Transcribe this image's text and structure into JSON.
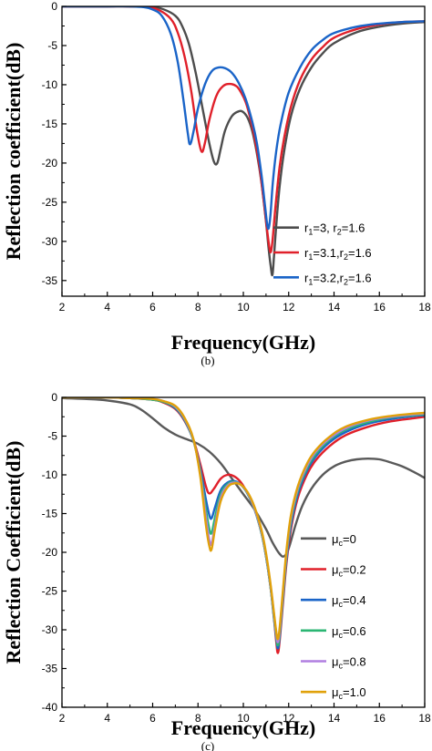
{
  "chart_data": [
    {
      "type": "line",
      "panel_label": "(b)",
      "xlabel": "Frequency(GHz)",
      "ylabel": "Reflection coefficient(dB)",
      "xlim": [
        2,
        18
      ],
      "ylim": [
        -37,
        0
      ],
      "xticks": [
        2,
        4,
        6,
        8,
        10,
        12,
        14,
        16,
        18
      ],
      "yticks": [
        0,
        -5,
        -10,
        -15,
        -20,
        -25,
        -30,
        -35
      ],
      "grid": false,
      "legend_position": "bottom-right",
      "series": [
        {
          "name": "r1=3, r2=1.6",
          "legend_parts": [
            "r",
            "1",
            "=3,    r",
            "2",
            "=1.6"
          ],
          "color": "#4d4d4d",
          "x": [
            2,
            4,
            5,
            6,
            6.5,
            7,
            7.3,
            7.6,
            7.9,
            8.2,
            8.5,
            8.7,
            8.85,
            9.0,
            9.2,
            9.5,
            9.8,
            10.0,
            10.2,
            10.4,
            10.6,
            10.8,
            11.0,
            11.1,
            11.2,
            11.28,
            11.35,
            11.45,
            11.6,
            11.8,
            12.1,
            12.5,
            13,
            13.5,
            14,
            15,
            16,
            17,
            18
          ],
          "y": [
            0,
            0,
            0,
            -0.1,
            -0.4,
            -1.2,
            -2.5,
            -4.8,
            -8.5,
            -13,
            -17.5,
            -19.8,
            -20,
            -18.2,
            -15.8,
            -14,
            -13.4,
            -13.5,
            -14.3,
            -16,
            -18.8,
            -22.5,
            -27.5,
            -30.5,
            -33,
            -34.3,
            -32,
            -28,
            -23,
            -18.5,
            -14,
            -10.5,
            -7.8,
            -6.0,
            -4.7,
            -3.3,
            -2.6,
            -2.2,
            -2.0
          ]
        },
        {
          "name": "r1=3.1, r2=1.6",
          "legend_parts": [
            "r",
            "1",
            "=3.1,r",
            "2",
            "=1.6"
          ],
          "color": "#e0202a",
          "x": [
            2,
            4,
            5,
            5.8,
            6.3,
            6.8,
            7.1,
            7.4,
            7.7,
            7.95,
            8.15,
            8.3,
            8.5,
            8.8,
            9.1,
            9.4,
            9.7,
            9.9,
            10.1,
            10.3,
            10.5,
            10.7,
            10.9,
            11.05,
            11.15,
            11.22,
            11.3,
            11.42,
            11.6,
            11.8,
            12.1,
            12.5,
            13,
            13.5,
            14,
            15,
            16,
            17,
            18
          ],
          "y": [
            0,
            0,
            0,
            -0.1,
            -0.5,
            -1.6,
            -3.3,
            -6.3,
            -10.8,
            -15.8,
            -18.5,
            -17.5,
            -14.5,
            -11.5,
            -10.2,
            -9.9,
            -10.2,
            -11,
            -12.2,
            -14.2,
            -16.8,
            -20.2,
            -24.8,
            -28.6,
            -30.8,
            -31.3,
            -29.5,
            -25.5,
            -20.5,
            -16.8,
            -12.8,
            -9.4,
            -6.8,
            -5.2,
            -4.0,
            -2.9,
            -2.3,
            -2.0,
            -1.9
          ]
        },
        {
          "name": "r1=3.2, r2=1.6",
          "legend_parts": [
            "r",
            "1",
            "=3.2,r",
            "2",
            "=1.6"
          ],
          "color": "#1a64c8",
          "x": [
            2,
            4,
            5,
            5.6,
            6.0,
            6.4,
            6.8,
            7.1,
            7.35,
            7.55,
            7.65,
            7.8,
            8.0,
            8.3,
            8.6,
            8.9,
            9.2,
            9.5,
            9.8,
            10.1,
            10.4,
            10.6,
            10.8,
            10.95,
            11.05,
            11.12,
            11.2,
            11.3,
            11.45,
            11.65,
            12.0,
            12.5,
            13,
            13.5,
            14,
            15,
            16,
            17,
            18
          ],
          "y": [
            0,
            0,
            0,
            -0.1,
            -0.4,
            -1.2,
            -3.5,
            -7,
            -11.8,
            -16.2,
            -17.6,
            -16,
            -13,
            -10,
            -8.3,
            -7.8,
            -7.9,
            -8.5,
            -9.8,
            -11.8,
            -14.8,
            -17.5,
            -21.5,
            -25.3,
            -27.8,
            -28.3,
            -26.5,
            -22.5,
            -18.5,
            -15,
            -11,
            -7.8,
            -5.6,
            -4.3,
            -3.4,
            -2.6,
            -2.2,
            -2.0,
            -1.9
          ]
        }
      ]
    },
    {
      "type": "line",
      "panel_label": "(c)",
      "xlabel": "Frequency(GHz)",
      "ylabel": "Reflection Coefficient(dB)",
      "xlim": [
        2,
        18
      ],
      "ylim": [
        -40,
        0
      ],
      "xticks": [
        2,
        4,
        6,
        8,
        10,
        12,
        14,
        16,
        18
      ],
      "yticks": [
        0,
        -5,
        -10,
        -15,
        -20,
        -25,
        -30,
        -35,
        -40
      ],
      "grid": false,
      "legend_position": "bottom-right",
      "series": [
        {
          "name": "μc=0",
          "legend_parts": [
            "μ",
            "c",
            "=0"
          ],
          "color": "#595959",
          "x": [
            2,
            3,
            4,
            5,
            5.5,
            6,
            6.5,
            7,
            7.5,
            8,
            8.5,
            9,
            9.5,
            10,
            10.5,
            11,
            11.3,
            11.6,
            11.8,
            12.0,
            12.3,
            12.6,
            13,
            13.5,
            14,
            14.5,
            15,
            15.5,
            16,
            16.5,
            17,
            17.5,
            18
          ],
          "y": [
            -0.1,
            -0.2,
            -0.4,
            -0.9,
            -1.6,
            -2.7,
            -3.9,
            -4.8,
            -5.4,
            -6.0,
            -7.0,
            -8.5,
            -10.5,
            -12.5,
            -14.5,
            -17,
            -18.8,
            -20.2,
            -20.5,
            -19.5,
            -16.5,
            -14,
            -11.8,
            -10,
            -8.9,
            -8.3,
            -8.0,
            -7.9,
            -8.0,
            -8.4,
            -8.9,
            -9.6,
            -10.4
          ]
        },
        {
          "name": "μc=0.2",
          "legend_parts": [
            "μ",
            "c",
            "=0.2"
          ],
          "color": "#e0202a",
          "x": [
            2,
            4,
            5,
            6,
            6.5,
            7,
            7.4,
            7.8,
            8.1,
            8.35,
            8.5,
            8.7,
            9.0,
            9.3,
            9.6,
            9.9,
            10.2,
            10.5,
            10.8,
            11.0,
            11.2,
            11.35,
            11.45,
            11.52,
            11.6,
            11.75,
            11.9,
            12.1,
            12.4,
            12.8,
            13.2,
            13.8,
            14.5,
            15.5,
            16.5,
            17.5,
            18
          ],
          "y": [
            0,
            0,
            -0.1,
            -0.3,
            -0.7,
            -1.5,
            -3,
            -5.5,
            -8.6,
            -11.5,
            -12.4,
            -11.8,
            -10.5,
            -10.0,
            -10.2,
            -11,
            -12.5,
            -14.5,
            -17.5,
            -20.5,
            -24.5,
            -28.5,
            -31.5,
            -33.0,
            -31.5,
            -26.5,
            -21.5,
            -17,
            -13,
            -10,
            -8.1,
            -6.3,
            -4.9,
            -3.8,
            -3.1,
            -2.7,
            -2.5
          ]
        },
        {
          "name": "μc=0.4",
          "legend_parts": [
            "μ",
            "c",
            "=0.4"
          ],
          "color": "#1a64c8",
          "x": [
            2,
            4,
            5,
            6,
            6.5,
            7,
            7.4,
            7.8,
            8.1,
            8.35,
            8.5,
            8.6,
            8.75,
            9.0,
            9.3,
            9.6,
            9.9,
            10.2,
            10.5,
            10.8,
            11.0,
            11.2,
            11.35,
            11.45,
            11.52,
            11.6,
            11.75,
            11.9,
            12.1,
            12.4,
            12.8,
            13.2,
            13.8,
            14.5,
            15.5,
            16.5,
            17.5,
            18
          ],
          "y": [
            0,
            0,
            -0.1,
            -0.3,
            -0.6,
            -1.4,
            -2.9,
            -5.6,
            -9.2,
            -13.2,
            -15.2,
            -15.6,
            -14.2,
            -12,
            -11,
            -10.8,
            -11.3,
            -12.5,
            -14.5,
            -17.5,
            -20.5,
            -24.5,
            -28.5,
            -31,
            -32.4,
            -31,
            -26,
            -21,
            -16.5,
            -12.5,
            -9.5,
            -7.6,
            -5.8,
            -4.5,
            -3.4,
            -2.8,
            -2.4,
            -2.3
          ]
        },
        {
          "name": "μc=0.6",
          "legend_parts": [
            "μ",
            "c",
            "=0.6"
          ],
          "color": "#2bb673",
          "x": [
            2,
            4,
            5,
            6,
            6.5,
            7,
            7.4,
            7.8,
            8.1,
            8.35,
            8.5,
            8.6,
            8.75,
            9.0,
            9.3,
            9.6,
            9.9,
            10.2,
            10.5,
            10.8,
            11.0,
            11.2,
            11.35,
            11.45,
            11.52,
            11.6,
            11.75,
            11.9,
            12.1,
            12.4,
            12.8,
            13.2,
            13.8,
            14.5,
            15.5,
            16.5,
            17.5,
            18
          ],
          "y": [
            0,
            0,
            -0.1,
            -0.3,
            -0.6,
            -1.3,
            -2.8,
            -5.6,
            -9.6,
            -14.5,
            -17.0,
            -17.5,
            -15.5,
            -12.5,
            -11.2,
            -10.9,
            -11.3,
            -12.5,
            -14.5,
            -17.5,
            -20.5,
            -24.5,
            -28.3,
            -30.8,
            -32.0,
            -30.6,
            -25.6,
            -20.6,
            -16,
            -12.1,
            -9.2,
            -7.3,
            -5.5,
            -4.2,
            -3.2,
            -2.6,
            -2.3,
            -2.2
          ]
        },
        {
          "name": "μc=0.8",
          "legend_parts": [
            "μ",
            "c",
            "=0.8"
          ],
          "color": "#b07ee0",
          "x": [
            2,
            4,
            5,
            6,
            6.5,
            7,
            7.4,
            7.8,
            8.1,
            8.35,
            8.5,
            8.6,
            8.75,
            9.0,
            9.3,
            9.6,
            9.9,
            10.2,
            10.5,
            10.8,
            11.0,
            11.2,
            11.35,
            11.45,
            11.52,
            11.6,
            11.75,
            11.9,
            12.1,
            12.4,
            12.8,
            13.2,
            13.8,
            14.5,
            15.5,
            16.5,
            17.5,
            18
          ],
          "y": [
            0,
            0,
            -0.1,
            -0.2,
            -0.5,
            -1.2,
            -2.7,
            -5.5,
            -9.9,
            -15.5,
            -18.4,
            -18.9,
            -16.5,
            -13,
            -11.4,
            -11,
            -11.3,
            -12.4,
            -14.4,
            -17.3,
            -20.3,
            -24.3,
            -28,
            -30.5,
            -31.6,
            -30.2,
            -25.2,
            -20.2,
            -15.6,
            -11.8,
            -8.9,
            -7.0,
            -5.3,
            -4.0,
            -3.0,
            -2.5,
            -2.2,
            -2.1
          ]
        },
        {
          "name": "μc=1.0",
          "legend_parts": [
            "μ",
            "c",
            "=1.0"
          ],
          "color": "#e0a10a",
          "x": [
            2,
            4,
            5,
            6,
            6.5,
            7,
            7.4,
            7.8,
            8.1,
            8.35,
            8.5,
            8.6,
            8.75,
            9.0,
            9.3,
            9.6,
            9.9,
            10.2,
            10.5,
            10.8,
            11.0,
            11.2,
            11.35,
            11.45,
            11.52,
            11.6,
            11.75,
            11.9,
            12.1,
            12.4,
            12.8,
            13.2,
            13.8,
            14.5,
            15.5,
            16.5,
            17.5,
            18
          ],
          "y": [
            0,
            0,
            -0.1,
            -0.2,
            -0.5,
            -1.1,
            -2.6,
            -5.4,
            -10.2,
            -16.5,
            -19.2,
            -19.6,
            -17,
            -13.4,
            -11.6,
            -11.1,
            -11.3,
            -12.3,
            -14.2,
            -17.1,
            -20.1,
            -24.1,
            -27.8,
            -30.2,
            -31.2,
            -29.8,
            -24.8,
            -19.8,
            -15.2,
            -11.5,
            -8.6,
            -6.8,
            -5.1,
            -3.8,
            -2.9,
            -2.4,
            -2.1,
            -2.0
          ]
        }
      ]
    }
  ]
}
